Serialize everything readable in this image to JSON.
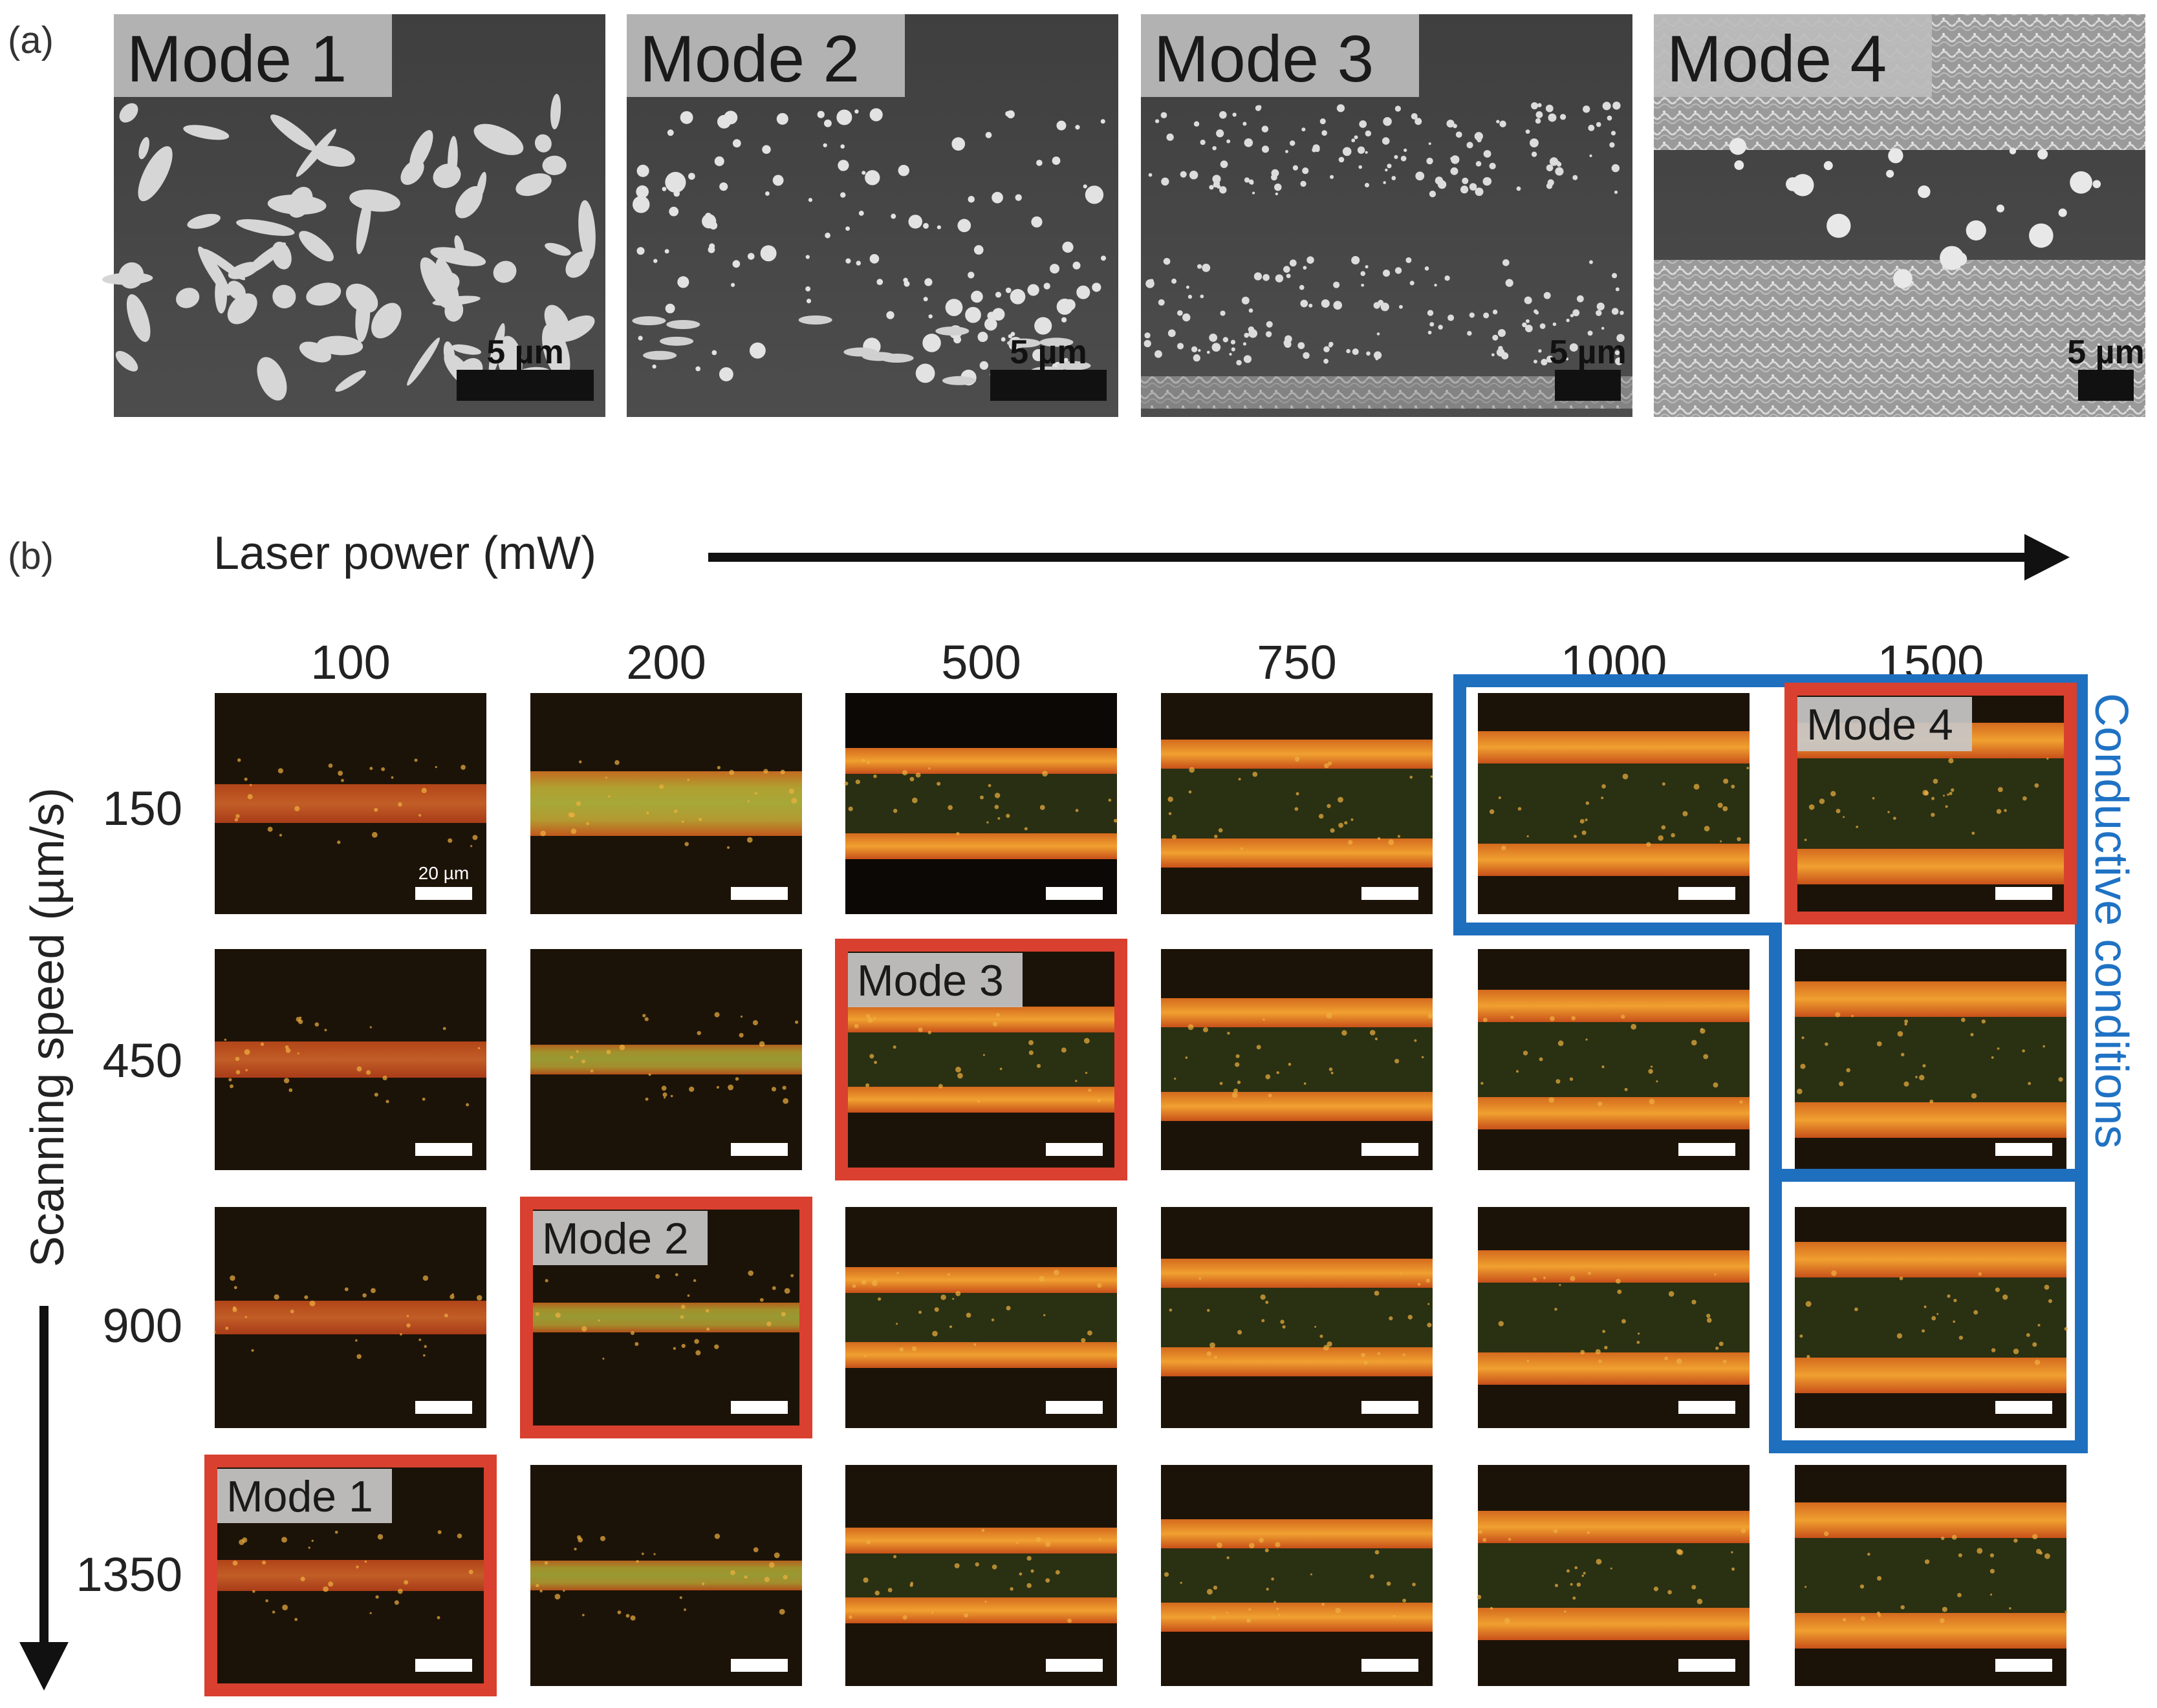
{
  "panel_a": {
    "label": "(a)",
    "tiles": [
      {
        "mode": "Mode 1",
        "scale": "5 µm"
      },
      {
        "mode": "Mode 2",
        "scale": "5 µm"
      },
      {
        "mode": "Mode 3",
        "scale": "5 µm"
      },
      {
        "mode": "Mode 4",
        "scale": "5 µm"
      }
    ]
  },
  "panel_b": {
    "label": "(b)",
    "power_axis_label": "Laser power (mW)",
    "speed_axis_label": "Scanning speed (µm/s)",
    "powers": [
      "100",
      "200",
      "500",
      "750",
      "1000",
      "1500"
    ],
    "speeds": [
      "150",
      "450",
      "900",
      "1350"
    ],
    "grid_scale_label": "20 µm",
    "conductive_label": "Conductive conditions",
    "mode_tags": [
      {
        "label": "Mode 1",
        "row": 3,
        "col": 0
      },
      {
        "label": "Mode 2",
        "row": 2,
        "col": 1
      },
      {
        "label": "Mode 3",
        "row": 1,
        "col": 2
      },
      {
        "label": "Mode 4",
        "row": 0,
        "col": 5
      }
    ]
  },
  "colors": {
    "mode_frame": "#d9402f",
    "conductive_frame": "#1f6fbf",
    "conductive_text": "#1f72c4"
  }
}
